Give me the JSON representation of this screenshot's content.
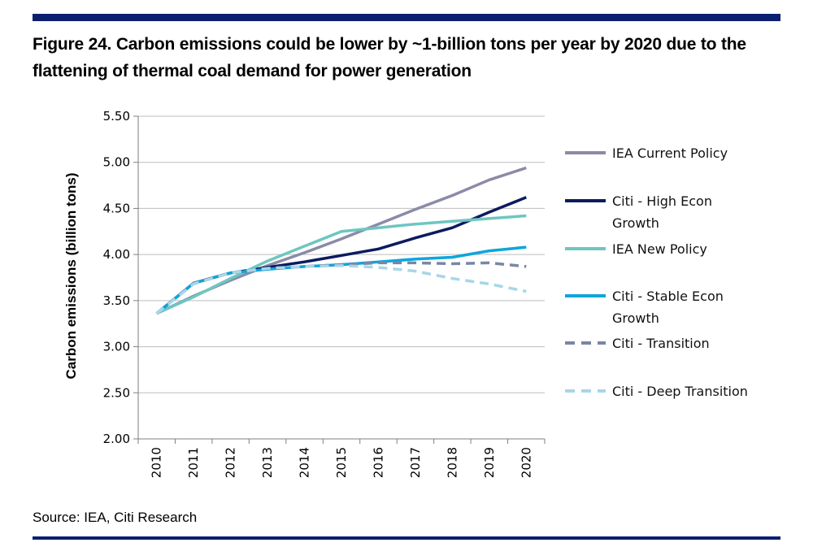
{
  "figure": {
    "title": "Figure 24. Carbon emissions could be lower by ~1-billion tons per year by 2020 due to the flattening of thermal coal demand for power generation",
    "source": "Source: IEA, Citi Research"
  },
  "chart_data": {
    "type": "line",
    "title": "",
    "xlabel": "",
    "ylabel": "Carbon emissions (billion tons)",
    "x": [
      "2010",
      "2011",
      "2012",
      "2013",
      "2014",
      "2015",
      "2016",
      "2017",
      "2018",
      "2019",
      "2020"
    ],
    "ylim": [
      2.0,
      5.5
    ],
    "yticks": [
      2.0,
      2.5,
      3.0,
      3.5,
      4.0,
      4.5,
      5.0,
      5.5
    ],
    "ytick_labels": [
      "2.00",
      "2.50",
      "3.00",
      "3.50",
      "4.00",
      "4.50",
      "5.00",
      "5.50"
    ],
    "grid": "horizontal",
    "legend_position": "right",
    "series": [
      {
        "name": "IEA Current Policy",
        "color": "#8b8ba8",
        "dash": "solid",
        "values": [
          3.36,
          3.55,
          3.72,
          3.88,
          4.02,
          4.17,
          4.33,
          4.49,
          4.64,
          4.81,
          4.94
        ]
      },
      {
        "name": "Citi - High Econ Growth",
        "color": "#0d1b5e",
        "dash": "solid",
        "values": [
          3.36,
          3.69,
          3.8,
          3.86,
          3.92,
          3.99,
          4.06,
          4.18,
          4.29,
          4.46,
          4.62
        ]
      },
      {
        "name": "IEA New Policy",
        "color": "#6ec6c0",
        "dash": "solid",
        "values": [
          3.36,
          3.54,
          3.74,
          3.93,
          4.09,
          4.25,
          4.29,
          4.33,
          4.36,
          4.39,
          4.42
        ]
      },
      {
        "name": "Citi - Stable Econ Growth",
        "color": "#0ea5dc",
        "dash": "solid",
        "values": [
          3.36,
          3.69,
          3.8,
          3.84,
          3.87,
          3.89,
          3.92,
          3.95,
          3.97,
          4.04,
          4.08
        ]
      },
      {
        "name": "Citi - Transition",
        "color": "#7a86a6",
        "dash": "dashed",
        "values": [
          3.36,
          3.69,
          3.8,
          3.85,
          3.87,
          3.89,
          3.91,
          3.91,
          3.9,
          3.91,
          3.87
        ]
      },
      {
        "name": "Citi - Deep Transition",
        "color": "#a8d6e8",
        "dash": "dashed",
        "values": [
          3.36,
          3.68,
          3.8,
          3.85,
          3.87,
          3.88,
          3.86,
          3.82,
          3.74,
          3.68,
          3.6
        ]
      }
    ],
    "legend_lines": [
      [
        "IEA Current Policy"
      ],
      [
        "Citi - High Econ",
        "Growth"
      ],
      [
        "IEA New Policy"
      ],
      [
        "Citi - Stable Econ",
        "Growth"
      ],
      [
        "Citi - Transition"
      ],
      [
        "Citi - Deep Transition"
      ]
    ]
  }
}
